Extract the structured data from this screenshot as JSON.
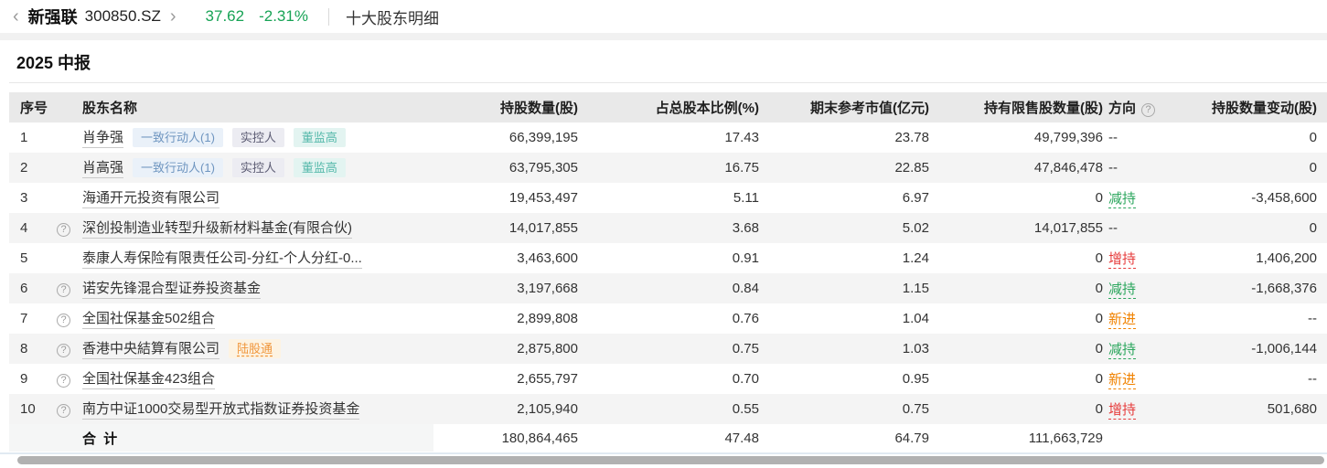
{
  "topbar": {
    "back_icon": "‹",
    "stock_name": "新强联",
    "stock_code": "300850.SZ",
    "forward_icon": "›",
    "price": "37.62",
    "change": "-2.31%",
    "page_title": "十大股东明细"
  },
  "section": {
    "title": "2025 中报"
  },
  "table": {
    "headers": [
      "序号",
      "股东名称",
      "持股数量(股)",
      "占总股本比例(%)",
      "期末参考市值(亿元)",
      "持有限售股数量(股)",
      "方向",
      "持股数量变动(股)"
    ],
    "direction_help_icon": "?",
    "rows": [
      {
        "no": "1",
        "help": false,
        "name": "肖争强",
        "badges": [
          {
            "label": "一致行动人(1)",
            "type": "blue"
          },
          {
            "label": "实控人",
            "type": "purple"
          },
          {
            "label": "董监高",
            "type": "teal"
          }
        ],
        "shares": "66,399,195",
        "ratio": "17.43",
        "value": "23.78",
        "restricted": "49,799,396",
        "direction": "--",
        "direction_type": "none",
        "change": "0"
      },
      {
        "no": "2",
        "help": false,
        "name": "肖高强",
        "badges": [
          {
            "label": "一致行动人(1)",
            "type": "blue"
          },
          {
            "label": "实控人",
            "type": "purple"
          },
          {
            "label": "董监高",
            "type": "teal"
          }
        ],
        "shares": "63,795,305",
        "ratio": "16.75",
        "value": "22.85",
        "restricted": "47,846,478",
        "direction": "--",
        "direction_type": "none",
        "change": "0"
      },
      {
        "no": "3",
        "help": false,
        "name": "海通开元投资有限公司",
        "badges": [],
        "shares": "19,453,497",
        "ratio": "5.11",
        "value": "6.97",
        "restricted": "0",
        "direction": "减持",
        "direction_type": "down",
        "change": "-3,458,600"
      },
      {
        "no": "4",
        "help": true,
        "name": "深创投制造业转型升级新材料基金(有限合伙)",
        "badges": [],
        "shares": "14,017,855",
        "ratio": "3.68",
        "value": "5.02",
        "restricted": "14,017,855",
        "direction": "--",
        "direction_type": "none",
        "change": "0"
      },
      {
        "no": "5",
        "help": false,
        "name": "泰康人寿保险有限责任公司-分红-个人分红-0...",
        "badges": [],
        "shares": "3,463,600",
        "ratio": "0.91",
        "value": "1.24",
        "restricted": "0",
        "direction": "增持",
        "direction_type": "up",
        "change": "1,406,200"
      },
      {
        "no": "6",
        "help": true,
        "name": "诺安先锋混合型证券投资基金",
        "badges": [],
        "shares": "3,197,668",
        "ratio": "0.84",
        "value": "1.15",
        "restricted": "0",
        "direction": "减持",
        "direction_type": "down",
        "change": "-1,668,376"
      },
      {
        "no": "7",
        "help": true,
        "name": "全国社保基金502组合",
        "badges": [],
        "shares": "2,899,808",
        "ratio": "0.76",
        "value": "1.04",
        "restricted": "0",
        "direction": "新进",
        "direction_type": "new",
        "change": "--"
      },
      {
        "no": "8",
        "help": true,
        "name": "香港中央結算有限公司",
        "badges": [
          {
            "label": "陆股通",
            "type": "orange"
          }
        ],
        "shares": "2,875,800",
        "ratio": "0.75",
        "value": "1.03",
        "restricted": "0",
        "direction": "减持",
        "direction_type": "down",
        "change": "-1,006,144"
      },
      {
        "no": "9",
        "help": true,
        "name": "全国社保基金423组合",
        "badges": [],
        "shares": "2,655,797",
        "ratio": "0.70",
        "value": "0.95",
        "restricted": "0",
        "direction": "新进",
        "direction_type": "new",
        "change": "--"
      },
      {
        "no": "10",
        "help": true,
        "name": "南方中证1000交易型开放式指数证券投资基金",
        "badges": [],
        "shares": "2,105,940",
        "ratio": "0.55",
        "value": "0.75",
        "restricted": "0",
        "direction": "增持",
        "direction_type": "up",
        "change": "501,680"
      }
    ],
    "total": {
      "label": "合 计",
      "shares": "180,864,465",
      "ratio": "47.48",
      "value": "64.79",
      "restricted": "111,663,729",
      "direction": "",
      "change": ""
    }
  },
  "colors": {
    "price_green": "#17a355",
    "reduce_green": "#2aa65c",
    "increase_red": "#e63c3c",
    "new_orange": "#f08200",
    "badge_blue_bg": "#eaf1f9",
    "badge_blue_text": "#6e95c0",
    "badge_gray_bg": "#ececf2",
    "badge_gray_text": "#5c5c74",
    "badge_teal_bg": "#e3f4f1",
    "badge_teal_text": "#56b9ab",
    "badge_orange_bg": "#fdf3e2",
    "badge_orange_text": "#f0963c",
    "header_bg": "#e9e9e9",
    "alt_row_bg": "#f4f4f4"
  }
}
